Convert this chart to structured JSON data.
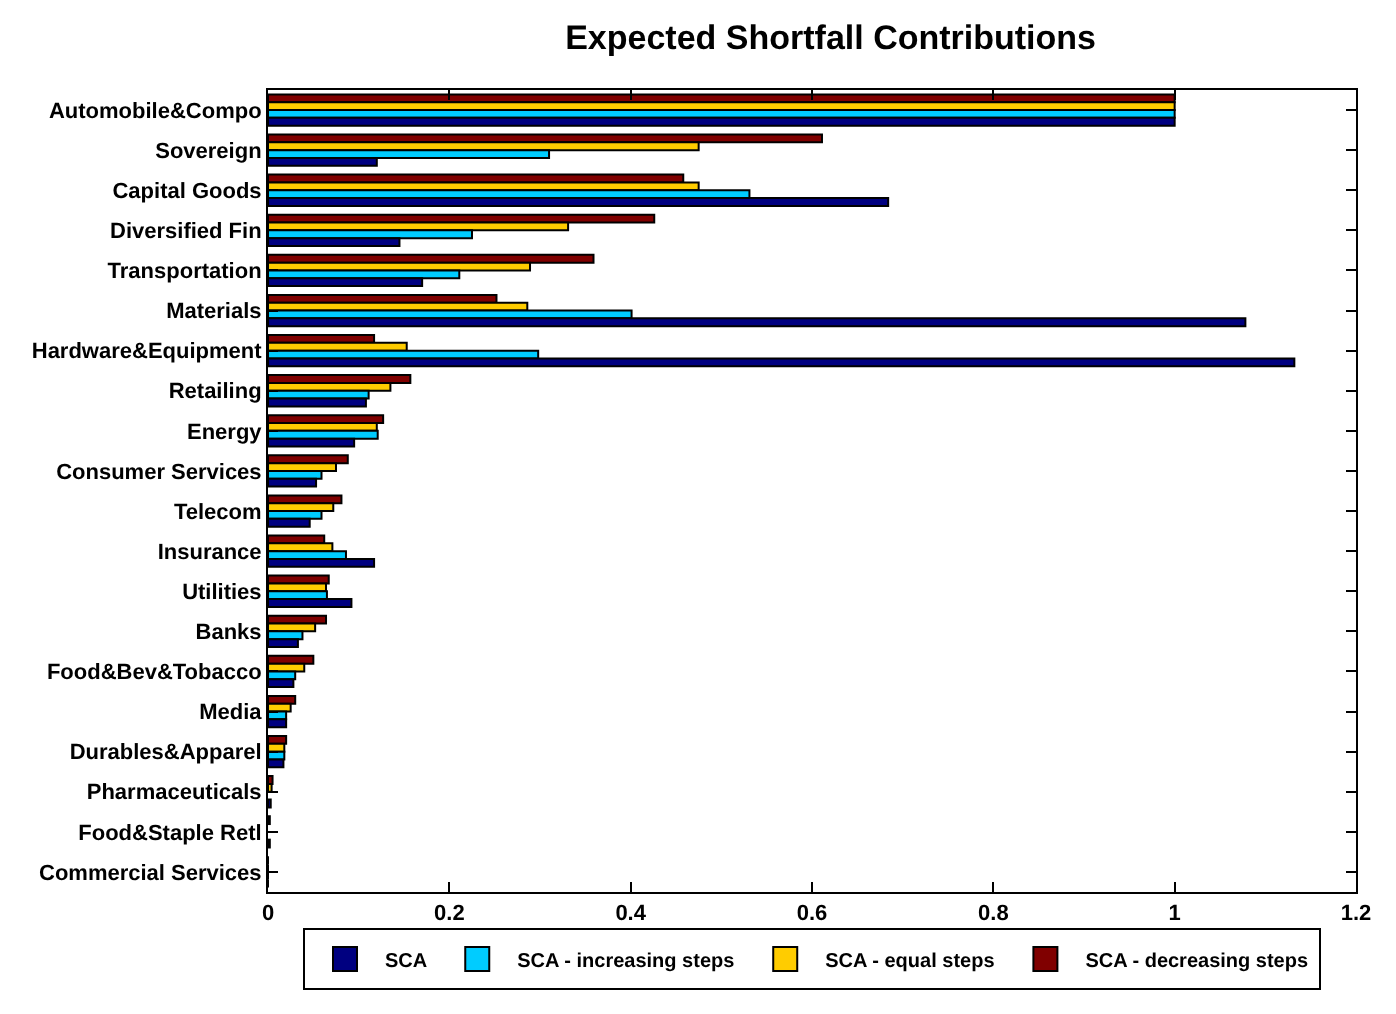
{
  "chart_data": {
    "type": "bar",
    "orientation": "horizontal",
    "title": "Expected Shortfall Contributions",
    "categories": [
      "Automobile&Compo",
      "Sovereign",
      "Capital Goods",
      "Diversified Fin",
      "Transportation",
      "Materials",
      "Hardware&Equipment",
      "Retailing",
      "Energy",
      "Consumer Services",
      "Telecom",
      "Insurance",
      "Utilities",
      "Banks",
      "Food&Bev&Tobacco",
      "Media",
      "Durables&Apparel",
      "Pharmaceuticals",
      "Food&Staple Retl",
      "Commercial Services"
    ],
    "series": [
      {
        "name": "SCA",
        "color": "#000080",
        "values": [
          1.0,
          0.12,
          0.684,
          0.145,
          0.17,
          1.078,
          1.132,
          0.108,
          0.095,
          0.053,
          0.046,
          0.117,
          0.092,
          0.033,
          0.028,
          0.02,
          0.017,
          0.003,
          0.002,
          0
        ]
      },
      {
        "name": "SCA - increasing steps",
        "color": "#00ccff",
        "values": [
          1.0,
          0.31,
          0.531,
          0.225,
          0.211,
          0.401,
          0.298,
          0.111,
          0.121,
          0.059,
          0.059,
          0.086,
          0.065,
          0.038,
          0.03,
          0.02,
          0.018,
          null,
          null,
          0
        ]
      },
      {
        "name": "SCA - equal steps",
        "color": "#ffcc00",
        "values": [
          1.0,
          0.475,
          0.475,
          0.331,
          0.289,
          0.286,
          0.153,
          0.135,
          0.12,
          0.075,
          0.072,
          0.071,
          0.064,
          0.052,
          0.04,
          0.025,
          0.018,
          0.004,
          null,
          0
        ]
      },
      {
        "name": "SCA - decreasing steps",
        "color": "#800000",
        "values": [
          1.0,
          0.611,
          0.458,
          0.426,
          0.359,
          0.252,
          0.117,
          0.157,
          0.127,
          0.088,
          0.081,
          0.062,
          0.067,
          0.064,
          0.05,
          0.03,
          0.02,
          0.005,
          0.002,
          0
        ]
      }
    ],
    "xlim": [
      0,
      1.2
    ],
    "xticks": [
      0,
      0.2,
      0.4,
      0.6,
      0.8,
      1,
      1.2
    ],
    "legend": "bottom"
  }
}
